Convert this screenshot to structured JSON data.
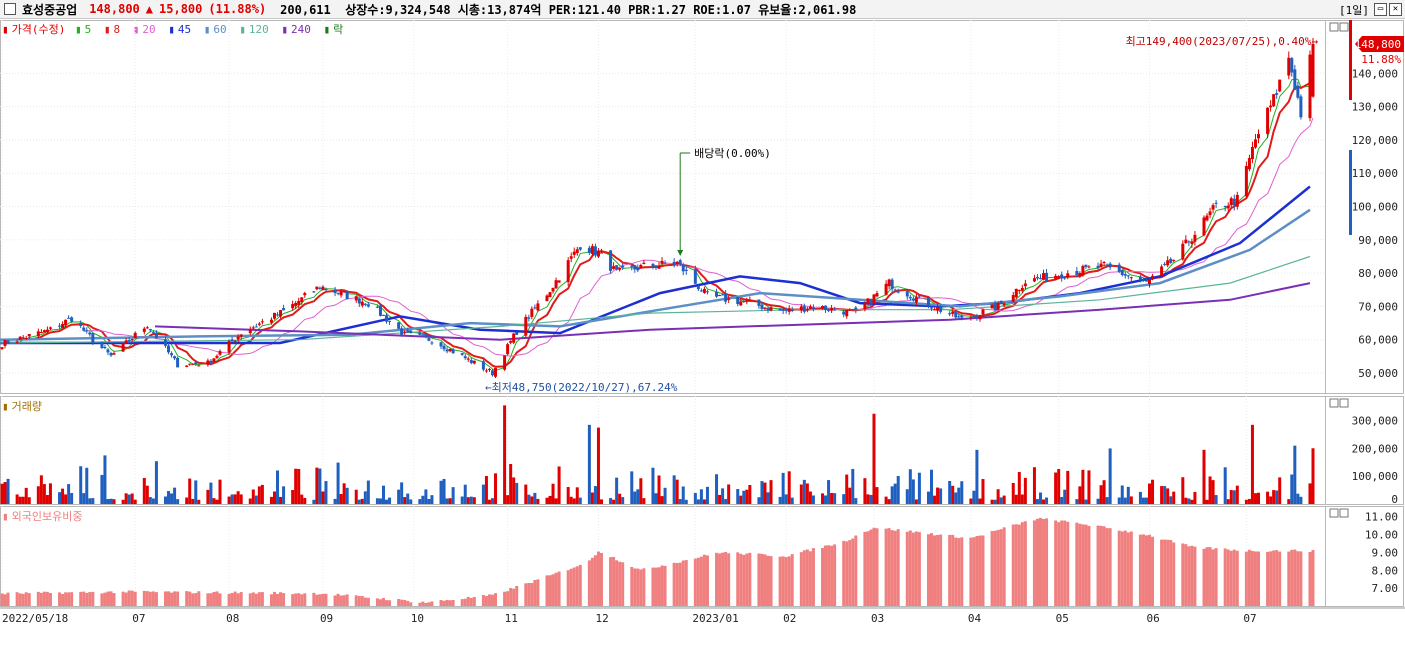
{
  "header": {
    "name": "효성중공업",
    "price": "148,800",
    "change_arrow": "▲",
    "change": "15,800",
    "change_pct": "(11.88%)",
    "stats": "200,611  상장수:9,324,548 시총:13,874억 PER:121.40 PBR:1.27 ROE:1.07 유보율:2,061.98",
    "period": "[1일]",
    "btn_restore": "▭",
    "btn_close": "✕"
  },
  "legends": {
    "price_title": "가격(수정)",
    "ma": [
      {
        "label": "5",
        "color": "#21b021"
      },
      {
        "label": "8",
        "color": "#e11b1b"
      },
      {
        "label": "20",
        "color": "#e060d0"
      },
      {
        "label": "45",
        "color": "#1b2fd2"
      },
      {
        "label": "60",
        "color": "#5d8fc6"
      },
      {
        "label": "120",
        "color": "#5bb49b"
      },
      {
        "label": "240",
        "color": "#7a2fb5"
      },
      {
        "label": "락",
        "color": "#1a7a1a"
      }
    ],
    "volume_title": "거래량",
    "foreign_title": "외국인보유비중"
  },
  "annotations": {
    "high": "최고149,400(2023/07/25),0.40%→",
    "low": "←최저48,750(2022/10/27),67.24%",
    "dividend": "배당락(0.00%)",
    "last_price": "148,800",
    "last_pct": "11.88%"
  },
  "colors": {
    "up": "#e00000",
    "down": "#1f5fbf",
    "foreign": "#f08080",
    "ma5": "#21b021",
    "ma8": "#e11b1b",
    "ma20": "#e060d0",
    "ma45": "#1b2fd2",
    "ma60": "#5d8fc6",
    "ma120": "#5bb49b",
    "ma240": "#7a2fb5"
  },
  "chart_data": [
    {
      "type": "candlestick",
      "title": "가격(수정)",
      "ylim": [
        44000,
        156000
      ],
      "yticks": [
        "140,000",
        "130,000",
        "120,000",
        "110,000",
        "100,000",
        "90,000",
        "80,000",
        "70,000",
        "60,000",
        "50,000"
      ],
      "ytick_values": [
        140000,
        130000,
        120000,
        110000,
        100000,
        90000,
        80000,
        70000,
        60000,
        50000
      ],
      "xticks": [
        "2022/05/18",
        "07",
        "08",
        "09",
        "10",
        "11",
        "12",
        "2023/01",
        "02",
        "03",
        "04",
        "05",
        "06",
        "07"
      ],
      "xtick_values": [
        "2022-05-18",
        "2022-07-01",
        "2022-08-01",
        "2022-09-01",
        "2022-10-01",
        "2022-11-01",
        "2022-12-01",
        "2023-01-02",
        "2023-02-01",
        "2023-03-02",
        "2023-04-03",
        "2023-05-02",
        "2023-06-01",
        "2023-07-03"
      ],
      "close_path": [
        {
          "date": "2022-05-18",
          "close": 58800
        },
        {
          "date": "2022-06-03",
          "close": 63000
        },
        {
          "date": "2022-06-10",
          "close": 66500
        },
        {
          "date": "2022-06-17",
          "close": 60000
        },
        {
          "date": "2022-06-23",
          "close": 55000
        },
        {
          "date": "2022-07-05",
          "close": 64500
        },
        {
          "date": "2022-07-15",
          "close": 52500
        },
        {
          "date": "2022-07-25",
          "close": 53000
        },
        {
          "date": "2022-08-05",
          "close": 62000
        },
        {
          "date": "2022-08-19",
          "close": 68500
        },
        {
          "date": "2022-08-31",
          "close": 76000
        },
        {
          "date": "2022-09-16",
          "close": 71000
        },
        {
          "date": "2022-09-28",
          "close": 61500
        },
        {
          "date": "2022-10-07",
          "close": 60000
        },
        {
          "date": "2022-10-20",
          "close": 53500
        },
        {
          "date": "2022-10-27",
          "close": 50000
        },
        {
          "date": "2022-11-04",
          "close": 62500
        },
        {
          "date": "2022-11-15",
          "close": 75000
        },
        {
          "date": "2022-11-25",
          "close": 88500
        },
        {
          "date": "2022-12-01",
          "close": 86000
        },
        {
          "date": "2022-12-07",
          "close": 80000
        },
        {
          "date": "2022-12-16",
          "close": 82000
        },
        {
          "date": "2022-12-27",
          "close": 83000
        },
        {
          "date": "2023-01-06",
          "close": 73000
        },
        {
          "date": "2023-01-17",
          "close": 71500
        },
        {
          "date": "2023-01-31",
          "close": 68500
        },
        {
          "date": "2023-02-10",
          "close": 70000
        },
        {
          "date": "2023-02-24",
          "close": 68000
        },
        {
          "date": "2023-03-07",
          "close": 77000
        },
        {
          "date": "2023-03-17",
          "close": 72000
        },
        {
          "date": "2023-03-31",
          "close": 66000
        },
        {
          "date": "2023-04-12",
          "close": 70000
        },
        {
          "date": "2023-04-21",
          "close": 77500
        },
        {
          "date": "2023-05-04",
          "close": 80000
        },
        {
          "date": "2023-05-17",
          "close": 82000
        },
        {
          "date": "2023-05-31",
          "close": 77000
        },
        {
          "date": "2023-06-09",
          "close": 84000
        },
        {
          "date": "2023-06-16",
          "close": 92000
        },
        {
          "date": "2023-06-23",
          "close": 100000
        },
        {
          "date": "2023-06-30",
          "close": 102000
        },
        {
          "date": "2023-07-06",
          "close": 120000
        },
        {
          "date": "2023-07-12",
          "close": 132000
        },
        {
          "date": "2023-07-17",
          "close": 145000
        },
        {
          "date": "2023-07-21",
          "close": 128000
        },
        {
          "date": "2023-07-25",
          "close": 148800
        }
      ],
      "ma": {
        "ma45": [
          [
            0,
            59000
          ],
          [
            150,
            59000
          ],
          [
            280,
            59000
          ],
          [
            400,
            67000
          ],
          [
            480,
            63000
          ],
          [
            560,
            62000
          ],
          [
            660,
            74000
          ],
          [
            740,
            79000
          ],
          [
            800,
            77000
          ],
          [
            860,
            71000
          ],
          [
            940,
            70000
          ],
          [
            1000,
            71000
          ],
          [
            1080,
            74000
          ],
          [
            1160,
            79000
          ],
          [
            1240,
            89000
          ],
          [
            1310,
            106000
          ]
        ],
        "ma60": [
          [
            0,
            60000
          ],
          [
            200,
            61000
          ],
          [
            350,
            61500
          ],
          [
            470,
            65000
          ],
          [
            560,
            64000
          ],
          [
            660,
            69000
          ],
          [
            760,
            74000
          ],
          [
            860,
            72000
          ],
          [
            960,
            70000
          ],
          [
            1060,
            73000
          ],
          [
            1160,
            77000
          ],
          [
            1250,
            87000
          ],
          [
            1310,
            99000
          ]
        ],
        "ma120": [
          [
            0,
            59000
          ],
          [
            300,
            60000
          ],
          [
            500,
            64000
          ],
          [
            650,
            68000
          ],
          [
            800,
            69000
          ],
          [
            950,
            69000
          ],
          [
            1100,
            72000
          ],
          [
            1230,
            77000
          ],
          [
            1310,
            85000
          ]
        ],
        "ma240": [
          [
            155,
            64000
          ],
          [
            300,
            62500
          ],
          [
            500,
            60000
          ],
          [
            650,
            63000
          ],
          [
            800,
            64500
          ],
          [
            950,
            66000
          ],
          [
            1100,
            69000
          ],
          [
            1230,
            72000
          ],
          [
            1310,
            77000
          ]
        ]
      },
      "annotations": [
        "최고149,400(2023/07/25),0.40%→",
        "←최저48,750(2022/10/27),67.24%",
        "배당락(0.00%)"
      ],
      "last_price": 148800
    },
    {
      "type": "bar",
      "title": "거래량",
      "ylim": [
        0,
        360000
      ],
      "yticks": [
        "300,000",
        "200,000",
        "100,000",
        "0"
      ],
      "ytick_values": [
        300000,
        200000,
        100000,
        0
      ],
      "spikes": [
        {
          "date": "2022-06-21",
          "value": 175000
        },
        {
          "date": "2022-10-31",
          "value": 355000
        },
        {
          "date": "2022-11-28",
          "value": 285000
        },
        {
          "date": "2022-12-01",
          "value": 275000
        },
        {
          "date": "2023-03-02",
          "value": 325000
        },
        {
          "date": "2023-04-05",
          "value": 195000
        },
        {
          "date": "2023-05-19",
          "value": 200000
        },
        {
          "date": "2023-06-19",
          "value": 195000
        },
        {
          "date": "2023-07-05",
          "value": 285000
        },
        {
          "date": "2023-07-19",
          "value": 210000
        },
        {
          "date": "2023-07-25",
          "value": 200611
        }
      ]
    },
    {
      "type": "bar",
      "title": "외국인보유비중",
      "ylim": [
        6.0,
        11.6
      ],
      "yticks": [
        "11.00",
        "10.00",
        "9.00",
        "8.00",
        "7.00"
      ],
      "ytick_values": [
        11,
        10,
        9,
        8,
        7
      ],
      "series": [
        {
          "date": "2022-05-18",
          "value": 6.7
        },
        {
          "date": "2022-07-01",
          "value": 6.8
        },
        {
          "date": "2022-09-01",
          "value": 6.7
        },
        {
          "date": "2022-10-05",
          "value": 6.2
        },
        {
          "date": "2022-10-27",
          "value": 6.6
        },
        {
          "date": "2022-11-15",
          "value": 7.7
        },
        {
          "date": "2022-11-28",
          "value": 8.5
        },
        {
          "date": "2022-12-01",
          "value": 9.1
        },
        {
          "date": "2022-12-15",
          "value": 8.0
        },
        {
          "date": "2023-01-10",
          "value": 9.0
        },
        {
          "date": "2023-02-01",
          "value": 8.8
        },
        {
          "date": "2023-02-20",
          "value": 9.6
        },
        {
          "date": "2023-03-02",
          "value": 10.4
        },
        {
          "date": "2023-04-03",
          "value": 9.8
        },
        {
          "date": "2023-04-25",
          "value": 10.9
        },
        {
          "date": "2023-05-10",
          "value": 10.6
        },
        {
          "date": "2023-05-31",
          "value": 10.0
        },
        {
          "date": "2023-06-15",
          "value": 9.3
        },
        {
          "date": "2023-07-03",
          "value": 9.1
        },
        {
          "date": "2023-07-25",
          "value": 9.1
        }
      ]
    }
  ]
}
